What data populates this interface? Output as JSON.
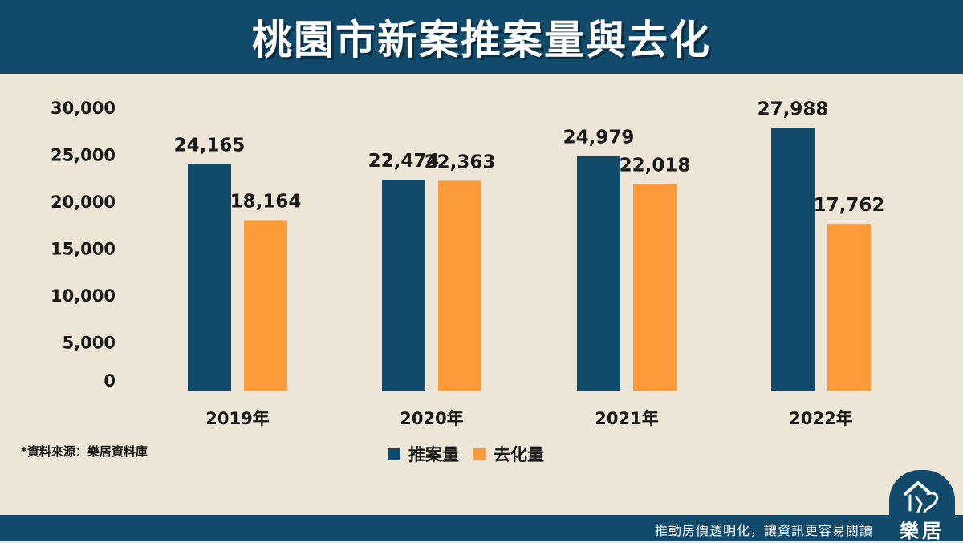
{
  "header": {
    "title": "桃園市新案推案量與去化"
  },
  "chart_data": {
    "type": "bar",
    "title": "桃園市新案推案量與去化",
    "categories": [
      "2019年",
      "2020年",
      "2021年",
      "2022年"
    ],
    "series": [
      {
        "name": "推案量",
        "values": [
          24165,
          22474,
          24979,
          27988
        ],
        "labels": [
          "24,165",
          "22,474",
          "24,979",
          "27,988"
        ],
        "color": "#114a6a"
      },
      {
        "name": "去化量",
        "values": [
          18164,
          22363,
          22018,
          17762
        ],
        "labels": [
          "18,164",
          "22,363",
          "22,018",
          "17,762"
        ],
        "color": "#fd9b3b"
      }
    ],
    "y_ticks": [
      0,
      5000,
      10000,
      15000,
      20000,
      25000,
      30000
    ],
    "y_tick_labels": [
      "0",
      "5,000",
      "10,000",
      "15,000",
      "20,000",
      "25,000",
      "30,000"
    ],
    "ylim": [
      0,
      30000
    ],
    "grid": false,
    "legend_position": "bottom-center"
  },
  "source_note": "*資料來源：樂居資料庫",
  "footer": {
    "slogan": "推動房價透明化，讓資訊更容易閱讀"
  },
  "logo": {
    "text": "樂居",
    "icon": "house-logo-icon"
  }
}
